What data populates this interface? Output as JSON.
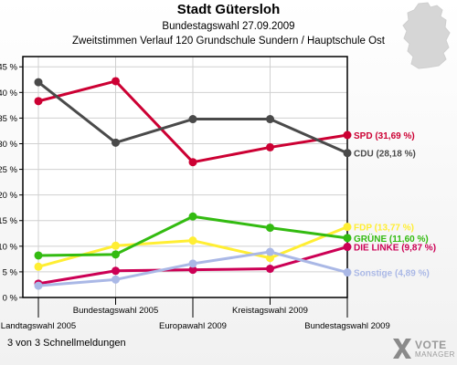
{
  "header": {
    "title": "Stadt Gütersloh",
    "subtitle": "Bundestagswahl 27.09.2009",
    "subtitle2": "Zweitstimmen Verlauf 120 Grundschule Sundern / Hauptschule Ost"
  },
  "footer": {
    "note": "3 von 3 Schnellmeldungen"
  },
  "logo": {
    "line1": "VOTE",
    "line2": "MANAGER",
    "icon": "x-cross-icon"
  },
  "colors": {
    "SPD": "#cc0033",
    "CDU": "#4a4a4a",
    "FDP": "#ffee33",
    "GRUENE": "#33bb11",
    "LINKE": "#cc0055",
    "Sonstige": "#aab8e6"
  },
  "chart_data": {
    "type": "line",
    "x": [
      "Landtagswahl 2005",
      "Bundestagswahl 2005",
      "Europawahl 2009",
      "Kreistagswahl 2009",
      "Bundestagswahl 2009"
    ],
    "ylim": [
      0,
      47
    ],
    "yticks": [
      "0 %",
      "5 %",
      "10 %",
      "15 %",
      "20 %",
      "25 %",
      "30 %",
      "35 %",
      "40 %",
      "45 %"
    ],
    "grid": true,
    "series": [
      {
        "name": "SPD",
        "color": "#cc0033",
        "values": [
          38.3,
          42.2,
          26.4,
          29.3,
          31.69
        ],
        "label": "SPD (31,69 %)"
      },
      {
        "name": "CDU",
        "color": "#4a4a4a",
        "values": [
          42.0,
          30.2,
          34.8,
          34.8,
          28.18
        ],
        "label": "CDU (28,18 %)"
      },
      {
        "name": "FDP",
        "color": "#ffee33",
        "values": [
          6.0,
          10.1,
          11.1,
          7.7,
          13.77
        ],
        "label": "FDP (13,77 %)"
      },
      {
        "name": "GRÜNE",
        "color": "#33bb11",
        "values": [
          8.2,
          8.4,
          15.8,
          13.6,
          11.6
        ],
        "label": "GRÜNE (11,60 %)"
      },
      {
        "name": "DIE LINKE",
        "color": "#cc0055",
        "values": [
          2.7,
          5.2,
          5.4,
          5.6,
          9.87
        ],
        "label": "DIE LINKE (9,87 %)"
      },
      {
        "name": "Sonstige",
        "color": "#aab8e6",
        "values": [
          2.3,
          3.5,
          6.6,
          8.9,
          4.89
        ],
        "label": "Sonstige (4,89 %)"
      }
    ]
  }
}
